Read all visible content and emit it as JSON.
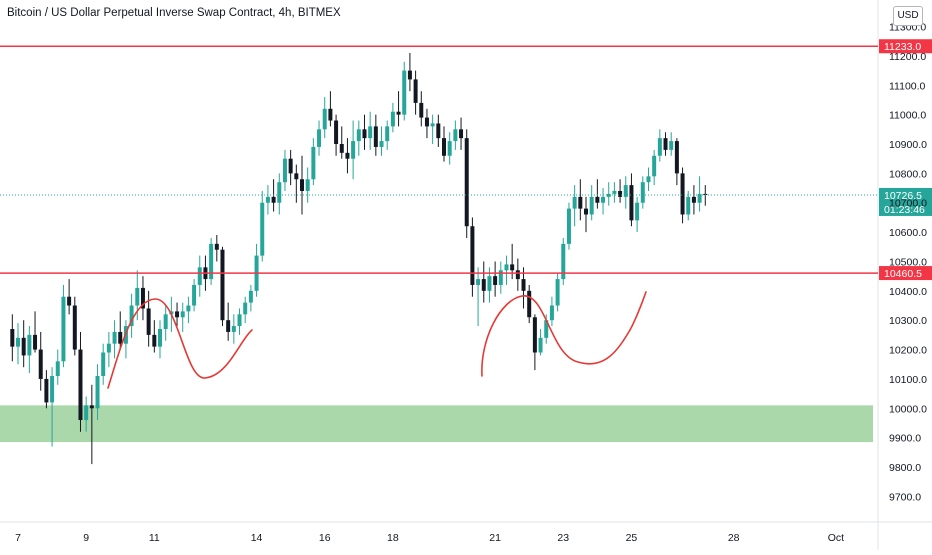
{
  "header": {
    "title": "Bitcoin / US Dollar Perpetual Inverse Swap Contract, 4h, BITMEX",
    "currency_button": "USD"
  },
  "colors": {
    "up": "#26a69a",
    "down": "#131722",
    "level_line": "#f23645",
    "support_zone": "#a5d6a7",
    "last_price_label": "#26a69a",
    "annotation": "#e53935"
  },
  "chart_data": {
    "type": "candlestick",
    "symbol": "BITMEX",
    "timeframe": "4h",
    "y_range": [
      9640,
      11370
    ],
    "y_ticks": [
      11300,
      11200,
      11100,
      11000,
      10900,
      10800,
      10700,
      10600,
      10500,
      10400,
      10300,
      10200,
      10100,
      10000,
      9900,
      9800,
      9700
    ],
    "y_tick_labels": [
      "11300.0",
      "11200.0",
      "11100.0",
      "11000.0",
      "10900.0",
      "10800.0",
      "10700.0",
      "10600.0",
      "10500.0",
      "10400.0",
      "10300.0",
      "10200.0",
      "10100.0",
      "10000.0",
      "9900.0",
      "9800.0",
      "9700.0"
    ],
    "x_ticks": [
      {
        "label": "7",
        "index": 0
      },
      {
        "label": "9",
        "index": 12
      },
      {
        "label": "11",
        "index": 24
      },
      {
        "label": "14",
        "index": 42
      },
      {
        "label": "16",
        "index": 54
      },
      {
        "label": "18",
        "index": 66
      },
      {
        "label": "21",
        "index": 84
      },
      {
        "label": "23",
        "index": 96
      },
      {
        "label": "25",
        "index": 108
      },
      {
        "label": "28",
        "index": 126
      },
      {
        "label": "Oct",
        "index": 144
      }
    ],
    "horizontal_levels": [
      {
        "price": 11233.0,
        "label": "11233.0"
      },
      {
        "price": 10460.5,
        "label": "10460.5"
      }
    ],
    "support_zone": [
      9885,
      10010
    ],
    "last_price": {
      "price": 10726.5,
      "label": "10726.5",
      "countdown": "01:23:46"
    },
    "candles": [
      [
        -1,
        10270,
        10320,
        10160,
        10210
      ],
      [
        0,
        10210,
        10290,
        10150,
        10240
      ],
      [
        1,
        10240,
        10300,
        10140,
        10180
      ],
      [
        2,
        10180,
        10280,
        10120,
        10250
      ],
      [
        3,
        10250,
        10330,
        10190,
        10200
      ],
      [
        4,
        10200,
        10260,
        10060,
        10100
      ],
      [
        5,
        10100,
        10130,
        10000,
        10020
      ],
      [
        6,
        10020,
        10140,
        9870,
        10110
      ],
      [
        7,
        10110,
        10200,
        10080,
        10160
      ],
      [
        8,
        10160,
        10420,
        10140,
        10380
      ],
      [
        9,
        10380,
        10440,
        10320,
        10350
      ],
      [
        10,
        10350,
        10380,
        10180,
        10200
      ],
      [
        11,
        10200,
        10260,
        9920,
        9960
      ],
      [
        12,
        9960,
        10040,
        9920,
        10010
      ],
      [
        13,
        10010,
        10080,
        9810,
        10000
      ],
      [
        14,
        10000,
        10150,
        9960,
        10110
      ],
      [
        15,
        10110,
        10220,
        10080,
        10190
      ],
      [
        16,
        10190,
        10260,
        10140,
        10220
      ],
      [
        17,
        10220,
        10300,
        10170,
        10260
      ],
      [
        18,
        10260,
        10330,
        10200,
        10220
      ],
      [
        19,
        10220,
        10300,
        10170,
        10280
      ],
      [
        20,
        10280,
        10390,
        10240,
        10350
      ],
      [
        21,
        10350,
        10470,
        10300,
        10410
      ],
      [
        22,
        10410,
        10450,
        10300,
        10340
      ],
      [
        23,
        10340,
        10400,
        10210,
        10250
      ],
      [
        24,
        10250,
        10300,
        10190,
        10210
      ],
      [
        25,
        10210,
        10300,
        10170,
        10270
      ],
      [
        26,
        10270,
        10350,
        10230,
        10320
      ],
      [
        27,
        10320,
        10380,
        10260,
        10330
      ],
      [
        28,
        10330,
        10360,
        10280,
        10310
      ],
      [
        29,
        10310,
        10360,
        10260,
        10330
      ],
      [
        30,
        10330,
        10380,
        10290,
        10350
      ],
      [
        31,
        10350,
        10440,
        10330,
        10420
      ],
      [
        32,
        10420,
        10520,
        10380,
        10480
      ],
      [
        33,
        10480,
        10520,
        10400,
        10440
      ],
      [
        34,
        10440,
        10580,
        10420,
        10560
      ],
      [
        35,
        10560,
        10590,
        10500,
        10540
      ],
      [
        36,
        10540,
        10550,
        10280,
        10300
      ],
      [
        37,
        10300,
        10360,
        10230,
        10260
      ],
      [
        38,
        10260,
        10320,
        10220,
        10280
      ],
      [
        39,
        10280,
        10340,
        10250,
        10320
      ],
      [
        40,
        10320,
        10380,
        10290,
        10360
      ],
      [
        41,
        10360,
        10420,
        10330,
        10400
      ],
      [
        42,
        10400,
        10560,
        10380,
        10520
      ],
      [
        43,
        10520,
        10740,
        10500,
        10700
      ],
      [
        44,
        10700,
        10760,
        10660,
        10720
      ],
      [
        45,
        10720,
        10780,
        10670,
        10700
      ],
      [
        46,
        10700,
        10800,
        10660,
        10770
      ],
      [
        47,
        10770,
        10880,
        10740,
        10850
      ],
      [
        48,
        10850,
        10880,
        10760,
        10800
      ],
      [
        49,
        10800,
        10830,
        10700,
        10780
      ],
      [
        50,
        10780,
        10860,
        10660,
        10740
      ],
      [
        51,
        10740,
        10820,
        10700,
        10780
      ],
      [
        52,
        10780,
        10920,
        10760,
        10890
      ],
      [
        53,
        10890,
        10980,
        10860,
        10950
      ],
      [
        54,
        10950,
        11060,
        10920,
        11020
      ],
      [
        55,
        11020,
        11080,
        10960,
        10980
      ],
      [
        56,
        10980,
        11000,
        10860,
        10900
      ],
      [
        57,
        10900,
        10960,
        10850,
        10870
      ],
      [
        58,
        10870,
        10920,
        10800,
        10850
      ],
      [
        59,
        10850,
        10980,
        10780,
        10910
      ],
      [
        60,
        10910,
        10980,
        10860,
        10950
      ],
      [
        61,
        10950,
        11000,
        10880,
        10920
      ],
      [
        62,
        10920,
        11010,
        10880,
        10960
      ],
      [
        63,
        10960,
        11000,
        10860,
        10890
      ],
      [
        64,
        10890,
        10960,
        10860,
        10910
      ],
      [
        65,
        10910,
        10980,
        10880,
        10960
      ],
      [
        66,
        10960,
        11040,
        10940,
        11010
      ],
      [
        67,
        11010,
        11080,
        10960,
        11000
      ],
      [
        68,
        11000,
        11180,
        10980,
        11150
      ],
      [
        69,
        11150,
        11210,
        11080,
        11120
      ],
      [
        70,
        11120,
        11150,
        11000,
        11040
      ],
      [
        71,
        11040,
        11080,
        10960,
        10990
      ],
      [
        72,
        10990,
        11020,
        10920,
        10960
      ],
      [
        73,
        10960,
        11000,
        10900,
        10970
      ],
      [
        74,
        10970,
        11000,
        10890,
        10920
      ],
      [
        75,
        10920,
        10960,
        10840,
        10860
      ],
      [
        76,
        10860,
        10940,
        10830,
        10910
      ],
      [
        77,
        10910,
        10980,
        10880,
        10950
      ],
      [
        78,
        10950,
        10990,
        10880,
        10920
      ],
      [
        79,
        10920,
        10950,
        10580,
        10620
      ],
      [
        80,
        10620,
        10650,
        10380,
        10420
      ],
      [
        81,
        10420,
        10480,
        10280,
        10440
      ],
      [
        82,
        10440,
        10500,
        10360,
        10400
      ],
      [
        83,
        10400,
        10480,
        10360,
        10450
      ],
      [
        84,
        10450,
        10500,
        10380,
        10420
      ],
      [
        85,
        10420,
        10500,
        10390,
        10470
      ],
      [
        86,
        10470,
        10520,
        10420,
        10490
      ],
      [
        87,
        10490,
        10560,
        10440,
        10470
      ],
      [
        88,
        10470,
        10510,
        10400,
        10440
      ],
      [
        89,
        10440,
        10480,
        10340,
        10400
      ],
      [
        90,
        10400,
        10420,
        10290,
        10310
      ],
      [
        91,
        10310,
        10320,
        10130,
        10190
      ],
      [
        92,
        10190,
        10270,
        10180,
        10240
      ],
      [
        93,
        10240,
        10320,
        10220,
        10300
      ],
      [
        94,
        10300,
        10380,
        10280,
        10350
      ],
      [
        95,
        10350,
        10460,
        10330,
        10440
      ],
      [
        96,
        10440,
        10580,
        10420,
        10560
      ],
      [
        97,
        10560,
        10700,
        10540,
        10680
      ],
      [
        98,
        10680,
        10760,
        10620,
        10720
      ],
      [
        99,
        10720,
        10780,
        10640,
        10680
      ],
      [
        100,
        10680,
        10720,
        10600,
        10660
      ],
      [
        101,
        10660,
        10760,
        10640,
        10720
      ],
      [
        102,
        10720,
        10780,
        10680,
        10700
      ],
      [
        103,
        10700,
        10750,
        10660,
        10720
      ],
      [
        104,
        10720,
        10770,
        10690,
        10730
      ],
      [
        105,
        10730,
        10770,
        10700,
        10740
      ],
      [
        106,
        10740,
        10780,
        10700,
        10720
      ],
      [
        107,
        10720,
        10790,
        10680,
        10760
      ],
      [
        108,
        10760,
        10800,
        10620,
        10640
      ],
      [
        109,
        10640,
        10720,
        10600,
        10700
      ],
      [
        110,
        10700,
        10790,
        10680,
        10770
      ],
      [
        111,
        10770,
        10820,
        10740,
        10790
      ],
      [
        112,
        10790,
        10880,
        10760,
        10860
      ],
      [
        113,
        10860,
        10950,
        10840,
        10920
      ],
      [
        114,
        10920,
        10940,
        10860,
        10880
      ],
      [
        115,
        10880,
        10940,
        10860,
        10910
      ],
      [
        116,
        10910,
        10920,
        10760,
        10800
      ],
      [
        117,
        10800,
        10820,
        10630,
        10660
      ],
      [
        118,
        10660,
        10740,
        10640,
        10720
      ],
      [
        119,
        10720,
        10760,
        10660,
        10700
      ],
      [
        120,
        10700,
        10790,
        10670,
        10730
      ],
      [
        121,
        10730,
        10760,
        10690,
        10726.5
      ]
    ]
  }
}
